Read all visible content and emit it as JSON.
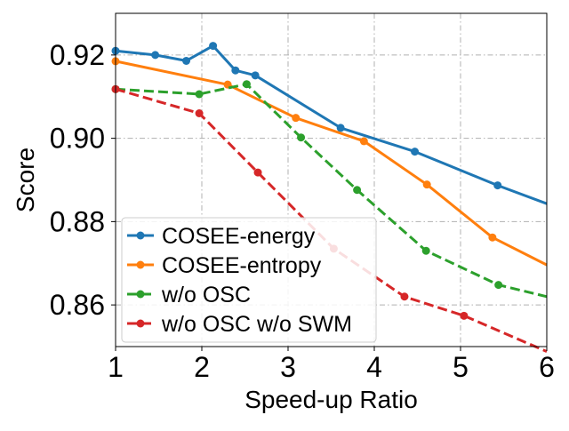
{
  "chart_data": {
    "type": "line",
    "title": "",
    "xlabel": "Speed-up Ratio",
    "ylabel": "Score",
    "xlim": [
      1,
      6
    ],
    "ylim": [
      0.85,
      0.93
    ],
    "xticks": [
      1,
      2,
      3,
      4,
      5,
      6
    ],
    "xtick_labels": [
      "1",
      "2",
      "3",
      "4",
      "5",
      "6"
    ],
    "yticks": [
      0.86,
      0.88,
      0.9,
      0.92
    ],
    "ytick_labels": [
      "0.86",
      "0.88",
      "0.90",
      "0.92"
    ],
    "grid": true,
    "legend_position": "lower-left",
    "series": [
      {
        "name": "COSEE-energy",
        "color": "#1f77b4",
        "style": "solid",
        "x": [
          1.0,
          1.46,
          1.82,
          2.13,
          2.39,
          2.62,
          3.61,
          4.47,
          5.43,
          6.0
        ],
        "y": [
          0.921,
          0.92,
          0.9186,
          0.9222,
          0.9163,
          0.9151,
          0.9025,
          0.8968,
          0.8887,
          0.8843
        ]
      },
      {
        "name": "COSEE-entropy",
        "color": "#ff7f0e",
        "style": "solid",
        "x": [
          1.0,
          2.3,
          3.09,
          3.88,
          4.61,
          5.37,
          6.0
        ],
        "y": [
          0.9185,
          0.9129,
          0.9049,
          0.8993,
          0.8889,
          0.8762,
          0.8696
        ]
      },
      {
        "name": "w/o OSC",
        "color": "#2ca02c",
        "style": "dashed",
        "x": [
          1.0,
          1.97,
          2.52,
          3.15,
          3.8,
          4.6,
          5.44,
          6.0
        ],
        "y": [
          0.9118,
          0.9106,
          0.913,
          0.9002,
          0.8876,
          0.873,
          0.8648,
          0.862
        ]
      },
      {
        "name": "w/o OSC w/o SWM",
        "color": "#d62728",
        "style": "dashed",
        "x": [
          1.0,
          1.97,
          2.65,
          3.53,
          4.35,
          5.04,
          6.0
        ],
        "y": [
          0.9118,
          0.906,
          0.8918,
          0.8735,
          0.862,
          0.8574,
          0.8488
        ]
      }
    ]
  }
}
